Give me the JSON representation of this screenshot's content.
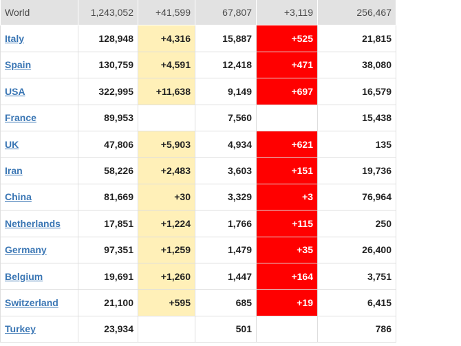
{
  "world": {
    "name": "World",
    "total_cases": "1,243,052",
    "new_cases": "+41,599",
    "total_deaths": "67,807",
    "new_deaths": "+3,119",
    "total_recovered": "256,467"
  },
  "countries": [
    {
      "name": "Italy",
      "total_cases": "128,948",
      "new_cases": "+4,316",
      "total_deaths": "15,887",
      "new_deaths": "+525",
      "total_recovered": "21,815"
    },
    {
      "name": "Spain",
      "total_cases": "130,759",
      "new_cases": "+4,591",
      "total_deaths": "12,418",
      "new_deaths": "+471",
      "total_recovered": "38,080"
    },
    {
      "name": "USA",
      "total_cases": "322,995",
      "new_cases": "+11,638",
      "total_deaths": "9,149",
      "new_deaths": "+697",
      "total_recovered": "16,579"
    },
    {
      "name": "France",
      "total_cases": "89,953",
      "new_cases": "",
      "total_deaths": "7,560",
      "new_deaths": "",
      "total_recovered": "15,438"
    },
    {
      "name": "UK",
      "total_cases": "47,806",
      "new_cases": "+5,903",
      "total_deaths": "4,934",
      "new_deaths": "+621",
      "total_recovered": "135"
    },
    {
      "name": "Iran",
      "total_cases": "58,226",
      "new_cases": "+2,483",
      "total_deaths": "3,603",
      "new_deaths": "+151",
      "total_recovered": "19,736"
    },
    {
      "name": "China",
      "total_cases": "81,669",
      "new_cases": "+30",
      "total_deaths": "3,329",
      "new_deaths": "+3",
      "total_recovered": "76,964"
    },
    {
      "name": "Netherlands",
      "total_cases": "17,851",
      "new_cases": "+1,224",
      "total_deaths": "1,766",
      "new_deaths": "+115",
      "total_recovered": "250"
    },
    {
      "name": "Germany",
      "total_cases": "97,351",
      "new_cases": "+1,259",
      "total_deaths": "1,479",
      "new_deaths": "+35",
      "total_recovered": "26,400"
    },
    {
      "name": "Belgium",
      "total_cases": "19,691",
      "new_cases": "+1,260",
      "total_deaths": "1,447",
      "new_deaths": "+164",
      "total_recovered": "3,751"
    },
    {
      "name": "Switzerland",
      "total_cases": "21,100",
      "new_cases": "+595",
      "total_deaths": "685",
      "new_deaths": "+19",
      "total_recovered": "6,415"
    },
    {
      "name": "Turkey",
      "total_cases": "23,934",
      "new_cases": "",
      "total_deaths": "501",
      "new_deaths": "",
      "total_recovered": "786"
    }
  ],
  "colors": {
    "world_row_bg": "#e2e2e2",
    "new_cases_highlight": "#fff0b8",
    "new_deaths_highlight": "#ff0000",
    "country_link": "#3a76b4"
  }
}
